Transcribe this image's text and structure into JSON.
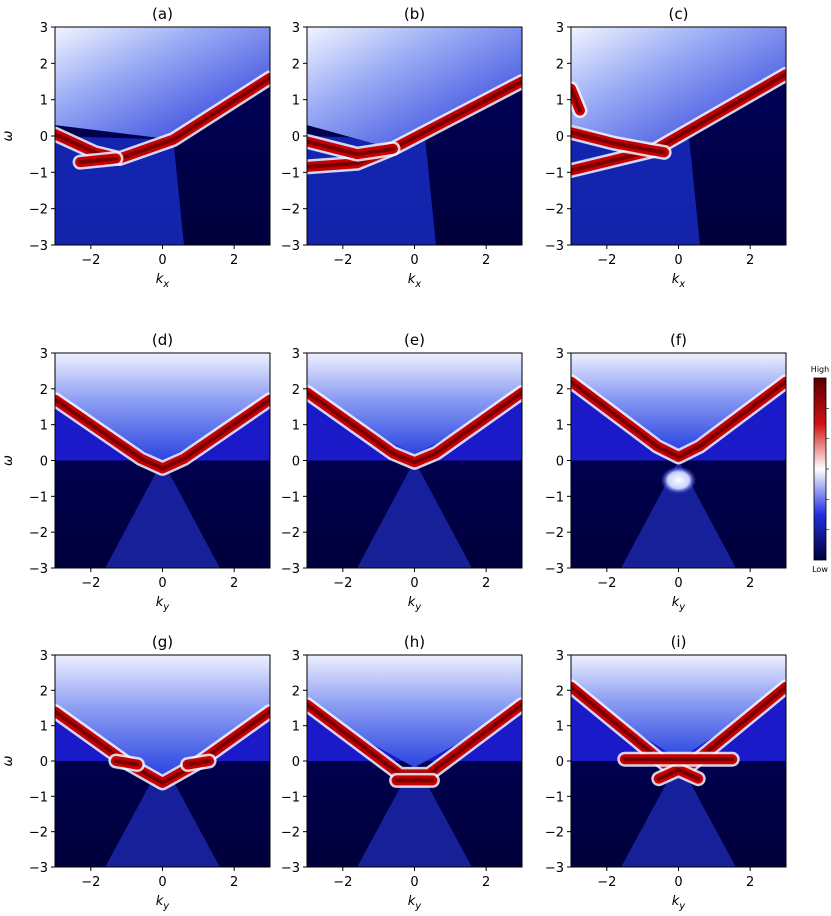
{
  "chart_data": [
    {
      "type": "heatmap",
      "title": "(a)",
      "x_label": [
        "k",
        "x"
      ],
      "y_label": "ω",
      "xlim": [
        -3,
        3
      ],
      "ylim": [
        -3,
        3
      ],
      "xticks": [
        {
          "value": -2,
          "label": "−2"
        },
        0,
        2
      ],
      "yticks": [
        {
          "value": -3,
          "label": "−3"
        },
        {
          "value": -2,
          "label": "−2"
        },
        {
          "value": -1,
          "label": "−1"
        },
        0,
        1,
        2,
        3
      ]
    },
    {
      "type": "heatmap",
      "title": "(b)",
      "x_label": [
        "k",
        "x"
      ],
      "xlim": [
        -3,
        3
      ],
      "ylim": [
        -3,
        3
      ],
      "xticks": [
        {
          "value": -2,
          "label": "−2"
        },
        0,
        2
      ],
      "yticks": [
        {
          "value": -3,
          "label": "−3"
        },
        {
          "value": -2,
          "label": "−2"
        },
        {
          "value": -1,
          "label": "−1"
        },
        0,
        1,
        2,
        3
      ]
    },
    {
      "type": "heatmap",
      "title": "(c)",
      "x_label": [
        "k",
        "x"
      ],
      "xlim": [
        -3,
        3
      ],
      "ylim": [
        -3,
        3
      ],
      "xticks": [
        {
          "value": -2,
          "label": "−2"
        },
        0,
        2
      ],
      "yticks": [
        {
          "value": -3,
          "label": "−3"
        },
        {
          "value": -2,
          "label": "−2"
        },
        {
          "value": -1,
          "label": "−1"
        },
        0,
        1,
        2,
        3
      ]
    },
    {
      "type": "heatmap",
      "title": "(d)",
      "x_label": [
        "k",
        "y"
      ],
      "y_label": "ω",
      "xlim": [
        -3,
        3
      ],
      "ylim": [
        -3,
        3
      ],
      "xticks": [
        {
          "value": -2,
          "label": "−2"
        },
        0,
        2
      ],
      "yticks": [
        {
          "value": -3,
          "label": "−3"
        },
        {
          "value": -2,
          "label": "−2"
        },
        {
          "value": -1,
          "label": "−1"
        },
        0,
        1,
        2,
        3
      ]
    },
    {
      "type": "heatmap",
      "title": "(e)",
      "x_label": [
        "k",
        "y"
      ],
      "xlim": [
        -3,
        3
      ],
      "ylim": [
        -3,
        3
      ],
      "xticks": [
        {
          "value": -2,
          "label": "−2"
        },
        0,
        2
      ],
      "yticks": [
        {
          "value": -3,
          "label": "−3"
        },
        {
          "value": -2,
          "label": "−2"
        },
        {
          "value": -1,
          "label": "−1"
        },
        0,
        1,
        2,
        3
      ]
    },
    {
      "type": "heatmap",
      "title": "(f)",
      "x_label": [
        "k",
        "y"
      ],
      "xlim": [
        -3,
        3
      ],
      "ylim": [
        -3,
        3
      ],
      "xticks": [
        {
          "value": -2,
          "label": "−2"
        },
        0,
        2
      ],
      "yticks": [
        {
          "value": -3,
          "label": "−3"
        },
        {
          "value": -2,
          "label": "−2"
        },
        {
          "value": -1,
          "label": "−1"
        },
        0,
        1,
        2,
        3
      ],
      "colorbar_high": "High",
      "colorbar_low": "Low"
    },
    {
      "type": "heatmap",
      "title": "(g)",
      "x_label": [
        "k",
        "y"
      ],
      "y_label": "ω",
      "xlim": [
        -3,
        3
      ],
      "ylim": [
        -3,
        3
      ],
      "xticks": [
        {
          "value": -2,
          "label": "−2"
        },
        0,
        2
      ],
      "yticks": [
        {
          "value": -3,
          "label": "−3"
        },
        {
          "value": -2,
          "label": "−2"
        },
        {
          "value": -1,
          "label": "−1"
        },
        0,
        1,
        2,
        3
      ]
    },
    {
      "type": "heatmap",
      "title": "(h)",
      "x_label": [
        "k",
        "y"
      ],
      "xlim": [
        -3,
        3
      ],
      "ylim": [
        -3,
        3
      ],
      "xticks": [
        {
          "value": -2,
          "label": "−2"
        },
        0,
        2
      ],
      "yticks": [
        {
          "value": -3,
          "label": "−3"
        },
        {
          "value": -2,
          "label": "−2"
        },
        {
          "value": -1,
          "label": "−1"
        },
        0,
        1,
        2,
        3
      ]
    },
    {
      "type": "heatmap",
      "title": "(i)",
      "x_label": [
        "k",
        "y"
      ],
      "xlim": [
        -3,
        3
      ],
      "ylim": [
        -3,
        3
      ],
      "xticks": [
        {
          "value": -2,
          "label": "−2"
        },
        0,
        2
      ],
      "yticks": [
        {
          "value": -3,
          "label": "−3"
        },
        {
          "value": -2,
          "label": "−2"
        },
        {
          "value": -1,
          "label": "−1"
        },
        0,
        1,
        2,
        3
      ]
    }
  ]
}
